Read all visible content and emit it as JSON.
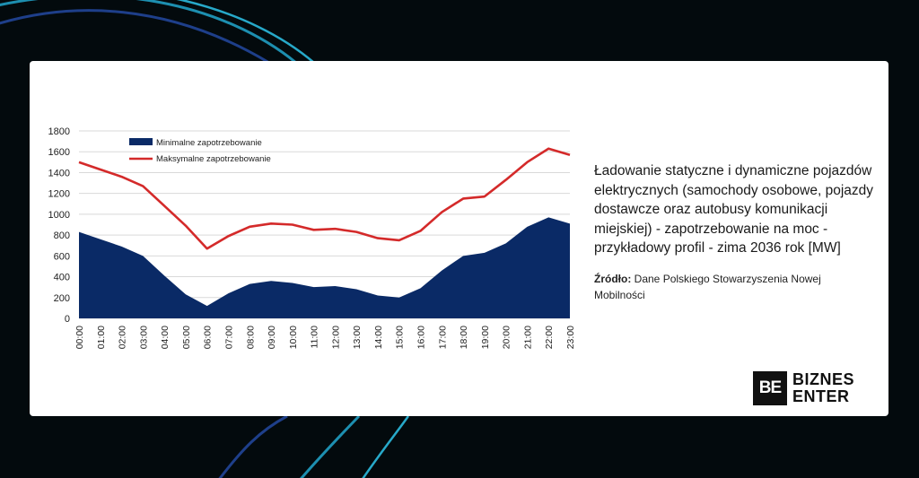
{
  "chart_data": {
    "type": "area",
    "title": "",
    "xlabel": "",
    "ylabel": "",
    "ylim": [
      0,
      1800
    ],
    "y_ticks": [
      "0",
      "200",
      "400",
      "600",
      "800",
      "1000",
      "1200",
      "1400",
      "1600",
      "1800"
    ],
    "categories": [
      "00:00",
      "01:00",
      "02:00",
      "03:00",
      "04:00",
      "05:00",
      "06:00",
      "07:00",
      "08:00",
      "09:00",
      "10:00",
      "11:00",
      "12:00",
      "13:00",
      "14:00",
      "15:00",
      "16:00",
      "17:00",
      "18:00",
      "19:00",
      "20:00",
      "21:00",
      "22:00",
      "23:00"
    ],
    "series": [
      {
        "name": "Minimalne zapotrzebowanie",
        "kind": "area",
        "color": "#0a2a66",
        "values": [
          830,
          760,
          690,
          600,
          410,
          230,
          120,
          240,
          330,
          360,
          340,
          300,
          310,
          280,
          220,
          200,
          290,
          460,
          600,
          630,
          720,
          880,
          970,
          910
        ]
      },
      {
        "name": "Maksymalne zapotrzebowanie",
        "kind": "line",
        "color": "#d42a2a",
        "values": [
          1500,
          1430,
          1360,
          1270,
          1080,
          890,
          670,
          790,
          880,
          910,
          900,
          850,
          860,
          830,
          770,
          750,
          840,
          1020,
          1150,
          1170,
          1330,
          1500,
          1630,
          1570
        ]
      }
    ],
    "legend_position": "top-left",
    "grid": true
  },
  "description": "Ładowanie statyczne i dynamiczne pojazdów elektrycznych (samochody osobowe, pojazdy dostawcze oraz autobusy komunikacji miejskiej) - zapotrzebowanie na moc - przykładowy profil - zima 2036 rok [MW]",
  "source": {
    "label": "Źródło:",
    "text": "Dane Polskiego Stowarzyszenia Nowej Mobilności"
  },
  "logo": {
    "mark": "BE",
    "line1": "BIZNES",
    "line2": "ENTER"
  },
  "colors": {
    "background": "#030a0d",
    "arc1": "#1e3f8a",
    "arc2": "#1a9ab8",
    "grid": "#d9d9d9"
  }
}
